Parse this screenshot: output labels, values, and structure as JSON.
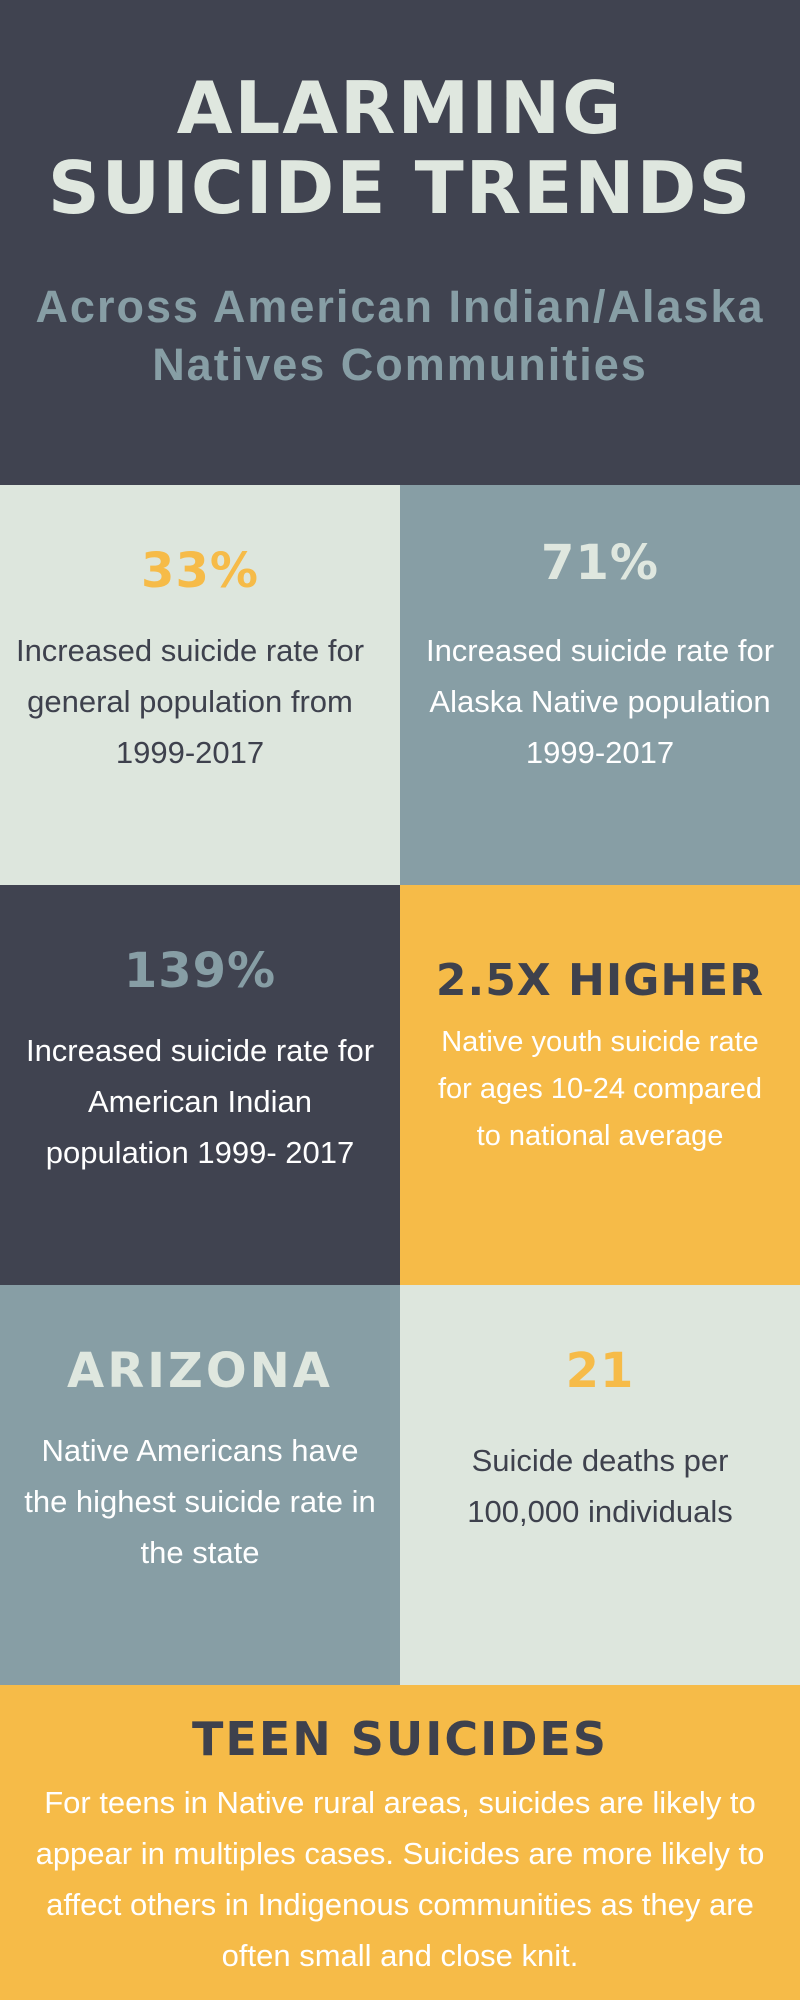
{
  "header": {
    "title": "ALARMING SUICIDE TRENDS",
    "subtitle": "Across American Indian/Alaska Natives Communities"
  },
  "colors": {
    "dark": "#404350",
    "slate": "#879ea5",
    "pale_green": "#dde6dd",
    "gold": "#f6bb48",
    "white": "#ffffff"
  },
  "stats": [
    {
      "headline": "33%",
      "text": "Increased suicide rate for general population from 1999-2017"
    },
    {
      "headline": "71%",
      "text": "Increased suicide rate for Alaska Native population 1999-2017"
    },
    {
      "headline": "139%",
      "text": "Increased suicide rate for American Indian population 1999- 2017"
    },
    {
      "headline": "2.5X HIGHER",
      "text": "Native youth suicide rate for ages 10-24 compared to national average"
    },
    {
      "headline": "ARIZONA",
      "text": "Native Americans have the highest suicide rate in the state"
    },
    {
      "headline": "21",
      "text": "Suicide deaths per 100,000 individuals"
    }
  ],
  "footer": {
    "title": "TEEN SUICIDES",
    "text": "For teens in Native rural areas, suicides are likely to appear in multiples cases. Suicides are more likely to affect others in Indigenous communities as they are often small and close knit."
  }
}
